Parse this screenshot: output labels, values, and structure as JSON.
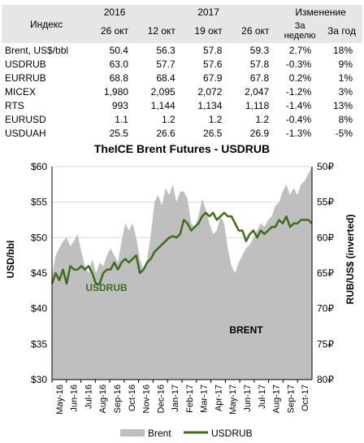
{
  "table": {
    "header": {
      "index_label": "Индекс",
      "year_2016": "2016",
      "year_2017": "2017",
      "change_label": "Изменение",
      "columns": [
        "26 окт",
        "12 окт",
        "19 окт",
        "26 окт",
        "За неделю",
        "За год"
      ]
    },
    "rows": [
      {
        "name": "Brent, US$/bbl",
        "v1": "50.4",
        "v2": "56.3",
        "v3": "57.8",
        "v4": "59.3",
        "week": "2.7%",
        "year": "18%"
      },
      {
        "name": "USDRUB",
        "v1": "63.0",
        "v2": "57.7",
        "v3": "57.6",
        "v4": "57.8",
        "week": "-0.3%",
        "year": "9%"
      },
      {
        "name": "EURRUB",
        "v1": "68.8",
        "v2": "68.4",
        "v3": "67.9",
        "v4": "67.8",
        "week": "0.2%",
        "year": "1%"
      },
      {
        "name": "MICEX",
        "v1": "1,980",
        "v2": "2,095",
        "v3": "2,072",
        "v4": "2,047",
        "week": "-1.2%",
        "year": "3%"
      },
      {
        "name": "RTS",
        "v1": "993",
        "v2": "1,144",
        "v3": "1,134",
        "v4": "1,118",
        "week": "-1.4%",
        "year": "13%"
      },
      {
        "name": "EURUSD",
        "v1": "1.1",
        "v2": "1.2",
        "v3": "1.2",
        "v4": "1.2",
        "week": "-0.4%",
        "year": "8%"
      },
      {
        "name": "USDUAH",
        "v1": "25.5",
        "v2": "26.6",
        "v3": "26.5",
        "v4": "26.9",
        "week": "-1.3%",
        "year": "-5%"
      }
    ]
  },
  "chart_data": {
    "type": "area",
    "title": "TheICE Brent Futures - USDRUB",
    "ylabel": "USD/bbl",
    "y2label": "RUB/US$ (inverted)",
    "ylim": [
      30,
      60
    ],
    "y2lim": [
      80,
      50
    ],
    "y2_inverted": true,
    "yticks": [
      "$30",
      "$35",
      "$40",
      "$45",
      "$50",
      "$55",
      "$60"
    ],
    "y2ticks": [
      "80₽",
      "75₽",
      "70₽",
      "65₽",
      "60₽",
      "55₽",
      "50₽"
    ],
    "xticks": [
      "May-16",
      "Jun-16",
      "Jul-16",
      "Aug-16",
      "Sep-16",
      "Oct-16",
      "Nov-16",
      "Dec-16",
      "Jan-17",
      "Feb-17",
      "Mar-17",
      "Apr-17",
      "May-17",
      "Jun-17",
      "Jul-17",
      "Aug-17",
      "Sep-17",
      "Oct-17"
    ],
    "grid": true,
    "legend_position": "bottom",
    "annotations": [
      {
        "text": "USDRUB",
        "color": "#3d6e1e"
      },
      {
        "text": "BRENT",
        "color": "#000000"
      }
    ],
    "x": [
      0,
      0.25,
      0.5,
      0.75,
      1,
      1.25,
      1.5,
      1.75,
      2,
      2.25,
      2.5,
      2.75,
      3,
      3.25,
      3.5,
      3.75,
      4,
      4.25,
      4.5,
      4.75,
      5,
      5.25,
      5.5,
      5.75,
      6,
      6.25,
      6.5,
      6.75,
      7,
      7.25,
      7.5,
      7.75,
      8,
      8.25,
      8.5,
      8.75,
      9,
      9.25,
      9.5,
      9.75,
      10,
      10.25,
      10.5,
      10.75,
      11,
      11.25,
      11.5,
      11.75,
      12,
      12.25,
      12.5,
      12.75,
      13,
      13.25,
      13.5,
      13.75,
      14,
      14.25,
      14.5,
      14.75,
      15,
      15.25,
      15.5,
      15.75,
      16,
      16.25,
      16.5,
      16.75,
      17,
      17.25,
      17.5,
      17.75
    ],
    "series": [
      {
        "name": "Brent",
        "type": "area",
        "color": "#bfbfbf",
        "axis": "left",
        "values": [
          44.5,
          47.5,
          48.5,
          49.5,
          50.0,
          48.8,
          49.5,
          50.5,
          48.0,
          46.0,
          45.0,
          47.0,
          45.0,
          46.5,
          46.0,
          47.5,
          48.5,
          47.5,
          46.5,
          49.5,
          52.0,
          51.0,
          52.0,
          50.0,
          47.0,
          45.5,
          47.0,
          50.5,
          55.0,
          56.0,
          54.5,
          57.0,
          56.0,
          57.5,
          55.0,
          56.5,
          56.5,
          55.5,
          52.0,
          51.5,
          53.0,
          55.5,
          54.0,
          52.0,
          50.5,
          51.0,
          53.0,
          52.0,
          48.5,
          46.0,
          45.0,
          46.5,
          47.5,
          48.5,
          49.0,
          50.0,
          51.0,
          52.0,
          51.5,
          52.5,
          53.0,
          54.5,
          55.0,
          56.5,
          57.5,
          56.0,
          57.0,
          56.0,
          57.5,
          58.0,
          59.0,
          60.0
        ]
      },
      {
        "name": "USDRUB",
        "type": "line",
        "color": "#3d6e1e",
        "axis": "right",
        "values": [
          66.5,
          65.0,
          66.0,
          64.5,
          66.5,
          64.0,
          64.5,
          64.5,
          64.0,
          64.5,
          64.0,
          65.0,
          66.5,
          66.5,
          65.0,
          64.5,
          64.5,
          63.5,
          64.5,
          63.5,
          63.0,
          63.5,
          63.0,
          62.5,
          65.0,
          64.5,
          63.5,
          63.0,
          62.0,
          61.5,
          61.0,
          60.5,
          60.0,
          59.8,
          60.0,
          59.5,
          57.5,
          58.0,
          59.0,
          58.5,
          58.0,
          57.0,
          56.5,
          57.0,
          56.5,
          57.5,
          57.0,
          56.5,
          57.0,
          57.0,
          58.0,
          59.0,
          59.0,
          60.5,
          59.5,
          59.0,
          60.0,
          59.0,
          59.5,
          59.0,
          58.5,
          58.5,
          57.5,
          58.0,
          57.0,
          58.5,
          58.0,
          58.0,
          57.5,
          57.5,
          57.5,
          58.0
        ]
      }
    ]
  }
}
